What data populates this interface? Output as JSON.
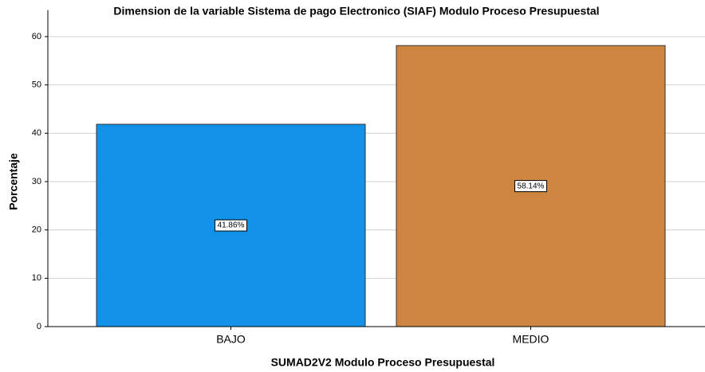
{
  "chart_data": {
    "type": "bar",
    "title": "Dimension de la variable Sistema de pago Electronico (SIAF) Modulo Proceso Presupuestal",
    "x_label": "SUMAD2V2 Modulo Proceso Presupuestal",
    "y_label": "Porcentaje",
    "categories": [
      "BAJO",
      "MEDIO"
    ],
    "values": [
      41.86,
      58.14
    ],
    "value_labels": [
      "41.86%",
      "58.14%"
    ],
    "colors": [
      "#1192e8",
      "#cd8540"
    ],
    "ylim": [
      0,
      65
    ],
    "yticks": [
      0,
      10,
      20,
      30,
      40,
      50,
      60
    ],
    "grid": true
  }
}
